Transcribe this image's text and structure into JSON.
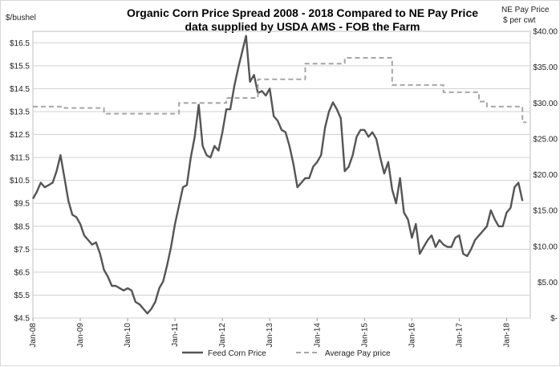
{
  "chart_data": {
    "type": "line",
    "title": "Organic Corn Price Spread 2008 - 2018 Compared to NE Pay Price",
    "subtitle": "data supplied by USDA AMS - FOB the Farm",
    "ylabel_left": "$/bushel",
    "ylabel_right_line1": "NE Pay Price",
    "ylabel_right_line2": "$ per cwt",
    "ylim_left": [
      4.5,
      17.0
    ],
    "ylim_right": [
      0,
      40
    ],
    "left_ticks": [
      "$4.5",
      "$5.5",
      "$6.5",
      "$7.5",
      "$8.5",
      "$9.5",
      "$10.5",
      "$11.5",
      "$12.5",
      "$13.5",
      "$14.5",
      "$15.5",
      "$16.5"
    ],
    "right_ticks": [
      "$-",
      "$5.00",
      "$10.00",
      "$15.00",
      "$20.00",
      "$25.00",
      "$30.00",
      "$35.00",
      "$40.00"
    ],
    "x_ticks": [
      "Jan-08",
      "Jan-09",
      "Jan-10",
      "Jan-11",
      "Jan-12",
      "Jan-13",
      "Jan-14",
      "Jan-15",
      "Jan-16",
      "Jan-17",
      "Jan-18"
    ],
    "xlim_months": [
      0,
      126
    ],
    "legend": "bottom",
    "series": [
      {
        "name": "Feed Corn Price",
        "axis": "left",
        "color": "#555555",
        "style": "solid",
        "x_months": [
          0,
          1,
          2,
          3,
          4,
          5,
          6,
          7,
          8,
          9,
          10,
          11,
          12,
          13,
          14,
          15,
          16,
          17,
          18,
          19,
          20,
          21,
          22,
          23,
          24,
          25,
          26,
          27,
          28,
          29,
          30,
          31,
          32,
          33,
          34,
          35,
          36,
          37,
          38,
          39,
          40,
          41,
          42,
          43,
          44,
          45,
          46,
          47,
          48,
          49,
          50,
          51,
          52,
          53,
          54,
          55,
          56,
          57,
          58,
          59,
          60,
          61,
          62,
          63,
          64,
          65,
          66,
          67,
          68,
          69,
          70,
          71,
          72,
          73,
          74,
          75,
          76,
          77,
          78,
          79,
          80,
          81,
          82,
          83,
          84,
          85,
          86,
          87,
          88,
          89,
          90,
          91,
          92,
          93,
          94,
          95,
          96,
          97,
          98,
          99,
          100,
          101,
          102,
          103,
          104,
          105,
          106,
          107,
          108,
          109,
          110,
          111,
          112,
          113,
          114,
          115,
          116,
          117,
          118,
          119,
          120,
          121,
          122,
          123,
          124
        ],
        "values": [
          9.7,
          10.0,
          10.4,
          10.2,
          10.3,
          10.4,
          10.9,
          11.6,
          10.6,
          9.6,
          9.0,
          8.9,
          8.6,
          8.1,
          7.9,
          7.7,
          7.8,
          7.3,
          6.6,
          6.3,
          5.9,
          5.9,
          5.8,
          5.7,
          5.8,
          5.7,
          5.2,
          5.1,
          4.9,
          4.7,
          4.9,
          5.2,
          5.8,
          6.1,
          6.8,
          7.6,
          8.6,
          9.4,
          10.2,
          10.3,
          11.5,
          12.4,
          13.8,
          12.0,
          11.6,
          11.5,
          12.0,
          11.8,
          12.6,
          13.6,
          13.6,
          14.6,
          15.4,
          16.1,
          16.8,
          14.8,
          15.1,
          14.3,
          14.4,
          14.2,
          14.5,
          13.3,
          13.1,
          12.7,
          12.6,
          12.0,
          11.2,
          10.2,
          10.4,
          10.6,
          10.6,
          11.1,
          11.3,
          11.6,
          12.8,
          13.5,
          13.9,
          13.6,
          13.2,
          10.9,
          11.1,
          11.6,
          12.4,
          12.7,
          12.7,
          12.4,
          12.6,
          12.3,
          11.5,
          10.8,
          11.3,
          10.1,
          9.5,
          10.6,
          9.1,
          8.8,
          8.0,
          8.6,
          7.3,
          7.6,
          7.9,
          8.1,
          7.6,
          7.9,
          7.7,
          7.6,
          7.6,
          8.0,
          8.1,
          7.3,
          7.2,
          7.5,
          7.9,
          8.1,
          8.3,
          8.5,
          9.2,
          8.8,
          8.5,
          8.5,
          9.1,
          9.3,
          10.2,
          10.4,
          9.6
        ]
      },
      {
        "name": "Average Pay price",
        "axis": "right",
        "color": "#a6a6a6",
        "style": "dashed",
        "x_months": [
          0,
          8,
          8,
          18,
          18,
          28,
          28,
          37,
          37,
          43,
          43,
          49,
          49,
          57,
          57,
          69,
          69,
          79,
          79,
          91,
          91,
          97,
          97,
          104,
          104,
          108,
          108,
          113,
          113,
          115,
          115,
          117,
          117,
          118,
          118,
          124,
          124,
          125
        ],
        "values": [
          29.5,
          29.5,
          29.3,
          29.3,
          28.5,
          28.5,
          28.5,
          28.5,
          30.0,
          30.0,
          30.0,
          30.0,
          30.7,
          30.7,
          33.3,
          33.3,
          35.5,
          35.5,
          36.3,
          36.3,
          32.5,
          32.5,
          32.5,
          32.5,
          31.5,
          31.5,
          31.5,
          31.5,
          30.2,
          30.2,
          29.5,
          29.5,
          29.5,
          29.5,
          29.5,
          29.5,
          27.3,
          27.3
        ]
      }
    ]
  }
}
